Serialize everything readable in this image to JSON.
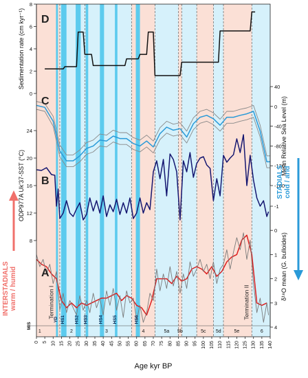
{
  "chart_data": {
    "type": "line",
    "x_axis": {
      "label": "Age kyr BP",
      "range": [
        0,
        140
      ],
      "ticks": [
        0,
        5,
        10,
        15,
        20,
        25,
        30,
        35,
        40,
        45,
        50,
        55,
        60,
        65,
        70,
        75,
        80,
        85,
        90,
        95,
        100,
        105,
        110,
        115,
        120,
        125,
        130,
        135,
        140
      ]
    },
    "shading": {
      "colors": {
        "interstadial": "#fbe0d6",
        "stadial": "#d6f1fb",
        "heinrich": "#5ccbee",
        "mis_boundary": "#666666"
      },
      "interstadial_bands": [
        [
          0,
          14
        ],
        [
          57,
          71
        ],
        [
          85,
          87
        ],
        [
          96,
          106
        ],
        [
          112,
          129
        ]
      ],
      "stadial_bands": [
        [
          14,
          57
        ],
        [
          71,
          85
        ],
        [
          87,
          96
        ],
        [
          106,
          112
        ],
        [
          129,
          140
        ]
      ],
      "heinrich_bands": [
        {
          "label": "YD",
          "range": [
            11.7,
            12.9
          ]
        },
        {
          "label": "HS1",
          "range": [
            14.8,
            18.0
          ]
        },
        {
          "label": "HS2",
          "range": [
            23.5,
            26.5
          ]
        },
        {
          "label": "HS3",
          "range": [
            29.5,
            31.0
          ]
        },
        {
          "label": "HS4",
          "range": [
            38.0,
            40.5
          ]
        },
        {
          "label": "HS5",
          "range": [
            47.0,
            48.5
          ]
        },
        {
          "label": "HS6",
          "range": [
            59.5,
            62.0
          ]
        }
      ],
      "mis_boundaries": [
        14,
        29,
        57,
        71,
        85,
        87,
        96,
        106,
        112,
        129
      ]
    },
    "mis_stages": [
      {
        "label": "1",
        "x": 2
      },
      {
        "label": "2",
        "x": 21
      },
      {
        "label": "3",
        "x": 42
      },
      {
        "label": "4",
        "x": 64
      },
      {
        "label": "5a",
        "x": 78
      },
      {
        "label": "5b",
        "x": 86
      },
      {
        "label": "5c",
        "x": 100
      },
      {
        "label": "5d",
        "x": 109
      },
      {
        "label": "5e",
        "x": 120
      },
      {
        "label": "6",
        "x": 135
      }
    ],
    "mis_header": "MIS",
    "panels": [
      {
        "letter": "D",
        "ylabel": "Sedimentation rate (cm kyr⁻¹)",
        "ylim": [
          0,
          8
        ],
        "yticks": [
          0,
          2,
          4,
          6,
          8
        ],
        "axis_side": "left",
        "series": [
          {
            "color": "#111111",
            "step": true,
            "x": [
              5,
              16,
              17,
              24,
              25,
              28,
              29,
              33,
              34,
              53,
              54,
              61,
              62,
              66,
              67,
              70,
              71,
              86,
              87,
              109,
              110,
              128,
              129,
              131
            ],
            "y": [
              2.2,
              2.2,
              2.4,
              2.4,
              5.5,
              5.5,
              3.5,
              3.5,
              2.5,
              2.5,
              3.1,
              3.1,
              3.5,
              3.5,
              5.5,
              5.5,
              1.6,
              1.6,
              2.8,
              2.8,
              5.6,
              5.6,
              7.3,
              7.3
            ]
          }
        ]
      },
      {
        "letter": "C",
        "ylabel": "Mean Relative Sea Level (m)",
        "ylim": [
          -160,
          40
        ],
        "yticks": [
          40,
          0,
          -40,
          -80,
          -120,
          -160
        ],
        "axis_side": "right",
        "series": [
          {
            "color": "#2a9ad8",
            "x": [
              0,
              5,
              10,
              14,
              18,
              22,
              26,
              30,
              34,
              38,
              42,
              46,
              50,
              54,
              58,
              62,
              66,
              70,
              74,
              78,
              82,
              86,
              90,
              94,
              98,
              102,
              106,
              110,
              114,
              118,
              122,
              126,
              130,
              134,
              138,
              140
            ],
            "y": [
              2,
              -2,
              -30,
              -90,
              -110,
              -110,
              -100,
              -85,
              -80,
              -68,
              -70,
              -60,
              -65,
              -65,
              -75,
              -80,
              -70,
              -82,
              -55,
              -42,
              -48,
              -45,
              -62,
              -35,
              -22,
              -18,
              -25,
              -38,
              -22,
              -22,
              -18,
              -15,
              -10,
              -50,
              -112,
              -112
            ]
          },
          {
            "color": "#888888",
            "x": [
              0,
              5,
              10,
              14,
              18,
              22,
              26,
              30,
              34,
              38,
              42,
              46,
              50,
              54,
              58,
              62,
              66,
              70,
              74,
              78,
              82,
              86,
              90,
              94,
              98,
              102,
              106,
              110,
              114,
              118,
              122,
              126,
              130,
              134,
              138,
              140
            ],
            "y": [
              10,
              6,
              -20,
              -78,
              -98,
              -98,
              -88,
              -73,
              -68,
              -56,
              -58,
              -48,
              -53,
              -53,
              -63,
              -68,
              -58,
              -70,
              -43,
              -30,
              -36,
              -33,
              -50,
              -23,
              -10,
              -6,
              -13,
              -26,
              -10,
              -10,
              -6,
              -3,
              2,
              -38,
              -100,
              -100
            ]
          },
          {
            "color": "#888888",
            "x": [
              0,
              5,
              10,
              14,
              18,
              22,
              26,
              30,
              34,
              38,
              42,
              46,
              50,
              54,
              58,
              62,
              66,
              70,
              74,
              78,
              82,
              86,
              90,
              94,
              98,
              102,
              106,
              110,
              114,
              118,
              122,
              126,
              130,
              134,
              138,
              140
            ],
            "y": [
              -6,
              -10,
              -40,
              -102,
              -122,
              -122,
              -112,
              -97,
              -92,
              -80,
              -82,
              -72,
              -77,
              -77,
              -87,
              -92,
              -82,
              -94,
              -67,
              -54,
              -60,
              -57,
              -74,
              -47,
              -34,
              -30,
              -37,
              -50,
              -34,
              -34,
              -30,
              -27,
              -22,
              -62,
              -124,
              -124
            ]
          }
        ]
      },
      {
        "letter": "B",
        "ylabel": "ODP977A Uk'37-SST (°C)",
        "ylim": [
          8,
          24
        ],
        "yticks": [
          8,
          12,
          16,
          20,
          24
        ],
        "axis_side": "left",
        "series": [
          {
            "color": "#141670",
            "x": [
              0,
              3,
              6,
              9,
              11,
              12,
              13,
              14,
              16,
              18,
              20,
              22,
              24,
              26,
              28,
              30,
              32,
              34,
              36,
              38,
              40,
              42,
              44,
              46,
              48,
              50,
              52,
              54,
              56,
              58,
              60,
              62,
              64,
              66,
              68,
              70,
              72,
              74,
              76,
              78,
              80,
              82,
              84,
              86,
              88,
              90,
              92,
              94,
              96,
              98,
              100,
              102,
              104,
              106,
              108,
              110,
              112,
              114,
              116,
              118,
              120,
              122,
              124,
              126,
              128,
              130,
              132,
              134,
              136,
              138,
              139
            ],
            "y": [
              18.3,
              18.2,
              18.6,
              17.6,
              17.5,
              13.0,
              15.5,
              11.2,
              12.0,
              13.8,
              12.0,
              11.5,
              12.6,
              13.5,
              11.0,
              11.8,
              14.2,
              12.3,
              13.8,
              12.0,
              14.5,
              11.5,
              13.2,
              12.2,
              14.0,
              11.8,
              13.5,
              12.0,
              14.2,
              11.2,
              12.0,
              14.2,
              12.0,
              13.5,
              12.5,
              18.0,
              19.6,
              17.0,
              19.8,
              14.5,
              20.6,
              19.8,
              18.0,
              11.0,
              19.6,
              18.0,
              20.8,
              17.2,
              19.2,
              20.0,
              20.2,
              19.0,
              18.5,
              13.8,
              17.0,
              14.5,
              20.4,
              19.4,
              20.0,
              20.5,
              22.8,
              20.8,
              23.4,
              16.0,
              20.4,
              16.8,
              14.2,
              13.0,
              13.8,
              11.5,
              12.2
            ]
          }
        ]
      },
      {
        "letter": "A",
        "ylabel": "δ¹⁸O mean (G. bulloides)",
        "ylim": [
          4,
          -1
        ],
        "yticks": [
          -1,
          0,
          1,
          2,
          3,
          4
        ],
        "axis_side": "right",
        "series": [
          {
            "color": "#dd1e1e",
            "x": [
              0,
              3,
              6,
              9,
              12,
              15,
              18,
              21,
              24,
              27,
              30,
              33,
              36,
              39,
              42,
              45,
              48,
              51,
              54,
              57,
              60,
              63,
              66,
              69,
              72,
              75,
              78,
              81,
              84,
              87,
              90,
              93,
              96,
              99,
              102,
              105,
              108,
              111,
              114,
              117,
              120,
              123,
              126,
              129,
              132,
              135,
              138
            ],
            "y": [
              1.2,
              1.4,
              1.5,
              1.8,
              2.0,
              2.9,
              3.2,
              3.0,
              3.2,
              3.0,
              3.1,
              3.0,
              2.9,
              2.8,
              2.8,
              2.7,
              2.6,
              2.9,
              2.7,
              2.8,
              3.1,
              3.2,
              3.5,
              2.9,
              2.0,
              2.0,
              2.0,
              2.2,
              1.9,
              2.1,
              2.0,
              1.6,
              1.5,
              1.6,
              1.8,
              1.5,
              1.9,
              1.7,
              1.3,
              1.1,
              1.0,
              0.4,
              0.2,
              1.0,
              3.0,
              3.1,
              3.0
            ]
          },
          {
            "color": "#7a7a7a",
            "x": [
              0,
              2,
              4,
              6,
              8,
              10,
              12,
              14,
              16,
              18,
              20,
              22,
              24,
              26,
              28,
              30,
              32,
              34,
              36,
              38,
              40,
              42,
              44,
              46,
              48,
              50,
              52,
              54,
              56,
              58,
              60,
              62,
              64,
              66,
              68,
              70,
              72,
              74,
              76,
              78,
              80,
              82,
              84,
              86,
              88,
              90,
              92,
              94,
              96,
              98,
              100,
              102,
              104,
              106,
              108,
              110,
              112,
              114,
              116,
              118,
              120,
              122,
              124,
              126,
              128,
              130,
              132,
              134,
              136,
              138,
              139
            ],
            "y": [
              1.0,
              1.5,
              1.2,
              1.8,
              1.4,
              2.2,
              1.7,
              3.3,
              2.6,
              3.4,
              2.9,
              3.2,
              3.5,
              2.7,
              3.3,
              2.9,
              3.4,
              2.6,
              3.2,
              2.8,
              3.5,
              2.5,
              3.1,
              2.4,
              3.3,
              2.7,
              3.6,
              2.5,
              3.0,
              2.8,
              3.7,
              3.1,
              3.8,
              3.4,
              2.6,
              2.9,
              1.6,
              2.5,
              1.8,
              2.4,
              1.5,
              2.3,
              1.7,
              2.6,
              1.8,
              2.4,
              1.3,
              1.9,
              1.6,
              1.2,
              1.7,
              1.4,
              2.0,
              1.3,
              2.2,
              1.6,
              1.4,
              0.8,
              1.6,
              0.9,
              0.3,
              0.8,
              0.1,
              1.2,
              0.4,
              2.2,
              3.4,
              2.8,
              3.8,
              3.0,
              3.5
            ]
          }
        ]
      }
    ],
    "annotations": [
      {
        "text": "Termination I",
        "x": 10
      },
      {
        "text": "Termination II",
        "x": 127
      }
    ],
    "side_labels": [
      {
        "line1": "STADIALS",
        "line2": "cold / arid",
        "color": "#2a9ad8"
      },
      {
        "line1": "INTERSTADIALS",
        "line2": "warm / humid",
        "color": "#f0706b"
      }
    ]
  }
}
